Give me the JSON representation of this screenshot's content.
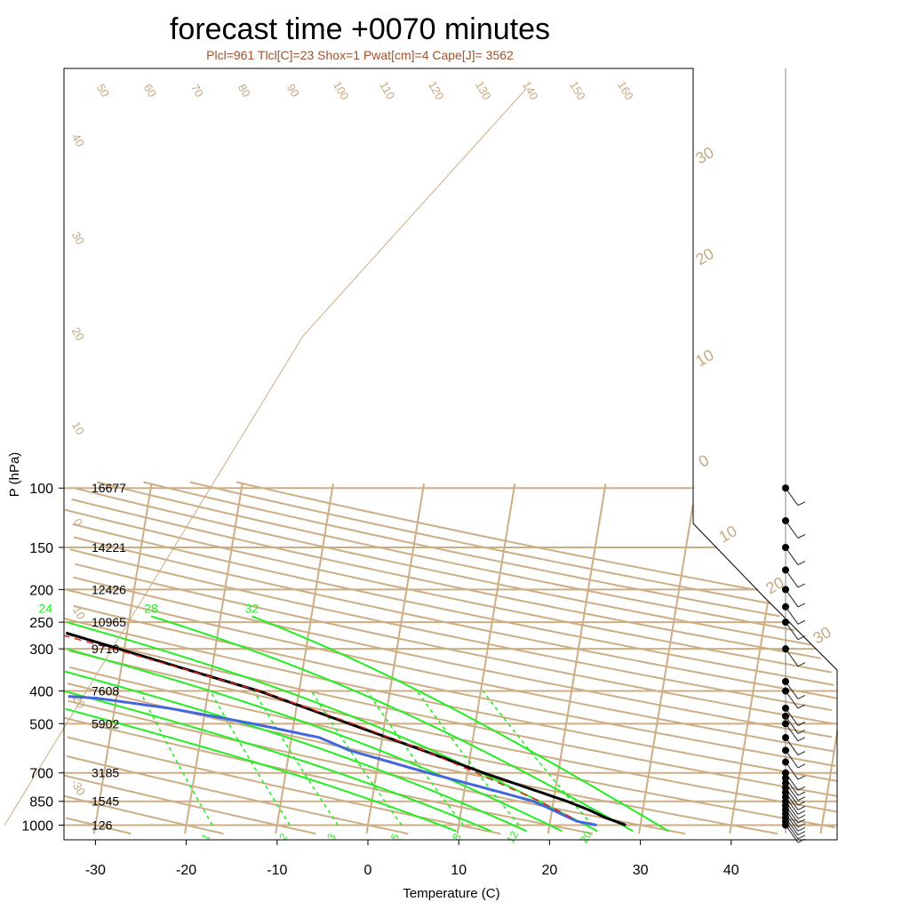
{
  "chart_data": {
    "type": "skew-t",
    "title": "forecast time +0070 minutes",
    "subtitle": "Plcl=961 Tlcl[C]=23 Shox=1 Pwat[cm]=4 Cape[J]= 3562",
    "xlabel": "Temperature (C)",
    "ylabel": "P (hPa)",
    "x_ticks": [
      -30,
      -20,
      -10,
      0,
      10,
      20,
      30,
      40
    ],
    "x_tick_labels": [
      "-30",
      "-20",
      "-10",
      "0",
      "10",
      "20",
      "30",
      "40"
    ],
    "p_levels": [
      100,
      150,
      200,
      250,
      300,
      400,
      500,
      700,
      850,
      1000
    ],
    "p_level_labels": [
      "100",
      "150",
      "200",
      "250",
      "300",
      "400",
      "500",
      "700",
      "850",
      "1000"
    ],
    "heights": [
      {
        "p": 100,
        "label": "16677"
      },
      {
        "p": 150,
        "label": "14221"
      },
      {
        "p": 200,
        "label": "12426"
      },
      {
        "p": 250,
        "label": "10965"
      },
      {
        "p": 300,
        "label": "9710"
      },
      {
        "p": 400,
        "label": "7608"
      },
      {
        "p": 500,
        "label": "5902"
      },
      {
        "p": 700,
        "label": "3185"
      },
      {
        "p": 850,
        "label": "1545"
      },
      {
        "p": 1000,
        "label": "126"
      }
    ],
    "dry_adiabat_labels": [
      "50",
      "60",
      "70",
      "80",
      "90",
      "100",
      "110",
      "120",
      "130",
      "140",
      "150",
      "160"
    ],
    "left_isotherm_labels": [
      "40",
      "30",
      "20",
      "10",
      "0",
      "-10",
      "-20",
      "-30"
    ],
    "right_isotherm_labels": [
      "30",
      "20",
      "10",
      "0",
      "10",
      "20",
      "30"
    ],
    "moist_adiabat_labels": [
      "8",
      "12",
      "16",
      "20",
      "24",
      "28",
      "32"
    ],
    "mixing_ratio_labels": [
      "1",
      "2",
      "3",
      "5",
      "8",
      "12",
      "20"
    ],
    "series": [
      {
        "name": "temperature",
        "color": "#000000",
        "points": [
          {
            "p": 1000,
            "t": 28.4
          },
          {
            "p": 950,
            "t": 26.0
          },
          {
            "p": 900,
            "t": 24.0
          },
          {
            "p": 850,
            "t": 21.5
          },
          {
            "p": 700,
            "t": 11.8
          },
          {
            "p": 600,
            "t": 4.7
          },
          {
            "p": 500,
            "t": -3.9
          },
          {
            "p": 400,
            "t": -14.4
          },
          {
            "p": 350,
            "t": -22.0
          },
          {
            "p": 300,
            "t": -30.6
          },
          {
            "p": 250,
            "t": -40.8
          },
          {
            "p": 225,
            "t": -46.7
          },
          {
            "p": 200,
            "t": -53.3
          },
          {
            "p": 180,
            "t": -58.3
          },
          {
            "p": 150,
            "t": -63.8
          },
          {
            "p": 125,
            "t": -63.3
          },
          {
            "p": 100,
            "t": -65.1
          }
        ]
      },
      {
        "name": "dewpoint",
        "color": "#4466dd",
        "points": [
          {
            "p": 1000,
            "t": 25.2
          },
          {
            "p": 975,
            "t": 23.0
          },
          {
            "p": 950,
            "t": 22.0
          },
          {
            "p": 900,
            "t": 20.0
          },
          {
            "p": 850,
            "t": 17.8
          },
          {
            "p": 800,
            "t": 14.1
          },
          {
            "p": 700,
            "t": 5.7
          },
          {
            "p": 600,
            "t": -3.4
          },
          {
            "p": 550,
            "t": -6.9
          },
          {
            "p": 500,
            "t": -14.5
          },
          {
            "p": 450,
            "t": -24.0
          },
          {
            "p": 420,
            "t": -32.2
          },
          {
            "p": 400,
            "t": -44.7
          },
          {
            "p": 390,
            "t": -70.6
          },
          {
            "p": 385,
            "t": -79.8
          },
          {
            "p": 150,
            "t": -136.6
          },
          {
            "p": 100,
            "t": -155.0
          }
        ]
      },
      {
        "name": "parcel",
        "color": "#dd2222",
        "points": [
          {
            "p": 950,
            "t": 22.3
          },
          {
            "p": 850,
            "t": 18.5
          },
          {
            "p": 700,
            "t": 11.0
          },
          {
            "p": 600,
            "t": 4.8
          },
          {
            "p": 500,
            "t": -3.5
          },
          {
            "p": 400,
            "t": -14.3
          },
          {
            "p": 300,
            "t": -31.2
          },
          {
            "p": 250,
            "t": -42.6
          },
          {
            "p": 200,
            "t": -56.6
          },
          {
            "p": 150,
            "t": -76.8
          }
        ]
      }
    ],
    "wind_levels": [
      1000,
      975,
      950,
      925,
      900,
      875,
      850,
      825,
      800,
      775,
      750,
      725,
      700,
      650,
      600,
      550,
      500,
      475,
      450,
      400,
      375,
      300,
      250,
      225,
      200,
      175,
      150,
      125,
      100
    ]
  }
}
